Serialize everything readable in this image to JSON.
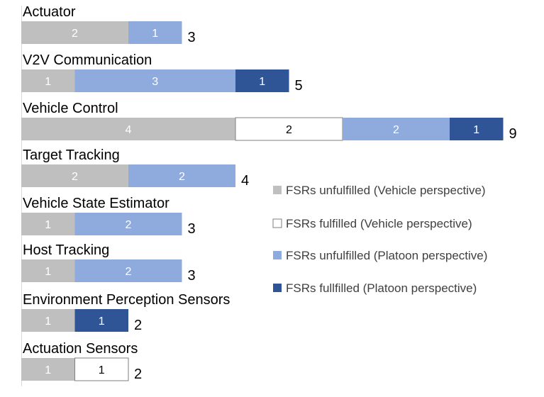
{
  "chart_data": {
    "type": "bar",
    "orientation": "horizontal",
    "stacked": true,
    "grid": false,
    "legend_position": "right",
    "categories": [
      "Actuator",
      "V2V Communication",
      "Vehicle Control",
      "Target Tracking",
      "Vehicle State Estimator",
      "Host Tracking",
      "Environment  Perception Sensors",
      "Actuation Sensors"
    ],
    "series": [
      {
        "name": "FSRs unfulfilled (Vehicle perspective)",
        "color": "#bfbfbf",
        "label_color": "#ffffff",
        "values": [
          2,
          1,
          4,
          2,
          1,
          1,
          1,
          1
        ]
      },
      {
        "name": "FSRs  fulfilled (Vehicle perspective)",
        "color": "#ffffff",
        "label_color": "#000000",
        "values": [
          0,
          0,
          2,
          0,
          0,
          0,
          0,
          1
        ]
      },
      {
        "name": "FSRs unfulfilled (Platoon perspective)",
        "color": "#8faadc",
        "label_color": "#ffffff",
        "values": [
          1,
          3,
          2,
          2,
          2,
          2,
          0,
          0
        ]
      },
      {
        "name": "FSRs fullfilled (Platoon perspective)",
        "color": "#2f5597",
        "label_color": "#ffffff",
        "values": [
          0,
          1,
          1,
          0,
          0,
          0,
          1,
          0
        ]
      }
    ],
    "totals": [
      3,
      5,
      9,
      4,
      3,
      3,
      2,
      2
    ],
    "xlim": [
      0,
      9
    ]
  }
}
